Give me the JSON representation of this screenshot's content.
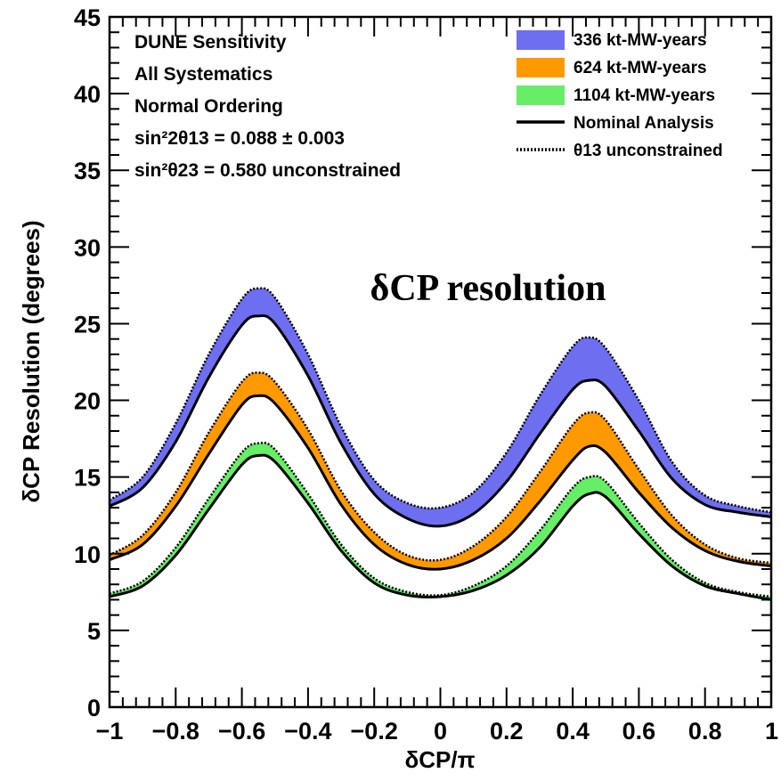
{
  "chart_data": {
    "type": "area",
    "xlabel": "δCP/π",
    "ylabel": "δCP Resolution (degrees)",
    "xlim": [
      -1,
      1
    ],
    "ylim": [
      0,
      45
    ],
    "x_ticks": [
      "−1",
      "−0.8",
      "−0.6",
      "−0.4",
      "−0.2",
      "0",
      "0.2",
      "0.4",
      "0.6",
      "0.8",
      "1"
    ],
    "y_ticks": [
      "0",
      "5",
      "10",
      "15",
      "20",
      "25",
      "30",
      "35",
      "40",
      "45"
    ],
    "annotation": {
      "lines": [
        "DUNE Sensitivity",
        "All Systematics",
        "Normal Ordering",
        "sin²2θ13 = 0.088 ± 0.003",
        "sin²θ23 = 0.580 unconstrained"
      ]
    },
    "overlay_title": "δCP resolution",
    "legend": {
      "position": "top-right",
      "entries": [
        "336 kt-MW-years",
        "624 kt-MW-years",
        "1104 kt-MW-years",
        "Nominal Analysis",
        "θ13 unconstrained"
      ]
    },
    "x": [
      -1,
      -0.9,
      -0.8,
      -0.7,
      -0.6,
      -0.55,
      -0.5,
      -0.4,
      -0.3,
      -0.2,
      -0.1,
      0,
      0.1,
      0.2,
      0.3,
      0.4,
      0.45,
      0.5,
      0.6,
      0.7,
      0.8,
      0.9,
      1
    ],
    "series": [
      {
        "name": "336 kt-MW-years",
        "color": "#6e6ef0",
        "nominal": [
          13.1,
          14.3,
          17.3,
          21.5,
          24.9,
          25.5,
          25.0,
          21.6,
          17.2,
          13.9,
          12.3,
          11.8,
          12.6,
          14.7,
          17.8,
          20.7,
          21.3,
          20.9,
          18.0,
          14.9,
          13.2,
          12.7,
          12.4
        ],
        "unconstrained": [
          13.5,
          15.0,
          18.5,
          23.0,
          26.6,
          27.3,
          26.7,
          23.0,
          18.3,
          14.8,
          13.3,
          13.0,
          14.0,
          16.6,
          20.3,
          23.5,
          24.1,
          23.4,
          20.0,
          16.0,
          13.8,
          13.1,
          12.7
        ]
      },
      {
        "name": "624 kt-MW-years",
        "color": "#ff9900",
        "nominal": [
          9.6,
          10.6,
          13.1,
          16.5,
          19.7,
          20.3,
          19.8,
          16.9,
          13.2,
          10.6,
          9.3,
          9.0,
          9.6,
          11.0,
          13.4,
          16.1,
          17.0,
          16.6,
          14.0,
          11.7,
          10.2,
          9.5,
          9.2
        ],
        "unconstrained": [
          9.9,
          11.2,
          14.0,
          17.9,
          21.2,
          21.8,
          21.2,
          18.1,
          14.1,
          11.4,
          9.9,
          9.6,
          10.5,
          12.4,
          15.3,
          18.4,
          19.2,
          18.7,
          15.5,
          12.5,
          10.6,
          9.7,
          9.4
        ]
      },
      {
        "name": "1104 kt-MW-years",
        "color": "#66ee66",
        "nominal": [
          7.2,
          7.9,
          9.9,
          12.9,
          15.8,
          16.4,
          16.0,
          13.3,
          10.2,
          8.1,
          7.3,
          7.2,
          7.6,
          8.6,
          10.4,
          13.1,
          13.9,
          13.7,
          11.3,
          9.2,
          7.9,
          7.4,
          7.0
        ],
        "unconstrained": [
          7.4,
          8.2,
          10.4,
          13.6,
          16.6,
          17.2,
          16.8,
          13.9,
          10.6,
          8.4,
          7.5,
          7.3,
          7.9,
          9.2,
          11.5,
          14.3,
          15.0,
          14.7,
          12.0,
          9.6,
          8.1,
          7.5,
          7.2
        ]
      }
    ],
    "grid": false
  }
}
